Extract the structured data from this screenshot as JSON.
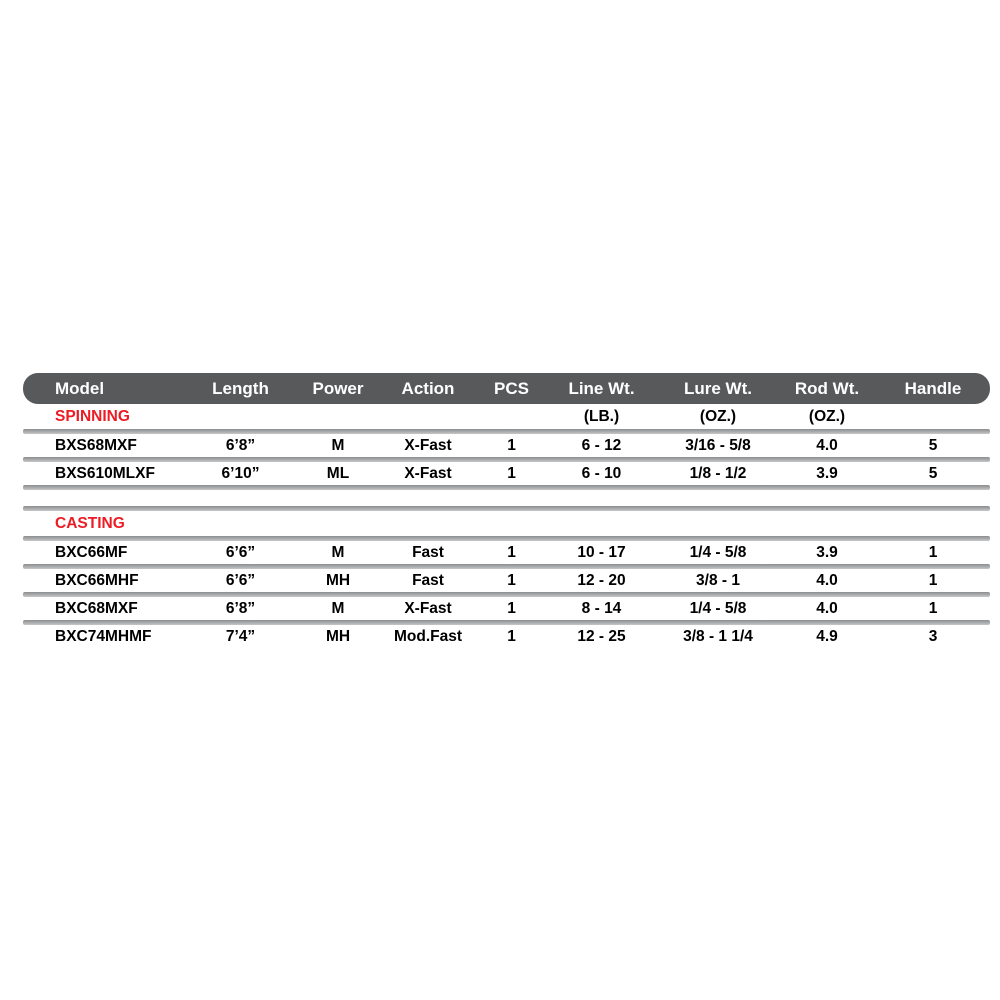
{
  "page": {
    "background": "#FFFFFF"
  },
  "table": {
    "colors": {
      "header_bg": "#58595B",
      "header_text": "#FFFFFF",
      "section_title": "#EC1C24",
      "row_text": "#000000",
      "divider_top": "#8B8C8E",
      "divider_bottom": "#C6C7C9"
    },
    "columns": [
      {
        "key": "model",
        "label": "Model",
        "unit": ""
      },
      {
        "key": "length",
        "label": "Length",
        "unit": ""
      },
      {
        "key": "power",
        "label": "Power",
        "unit": ""
      },
      {
        "key": "action",
        "label": "Action",
        "unit": ""
      },
      {
        "key": "pcs",
        "label": "PCS",
        "unit": ""
      },
      {
        "key": "line_wt",
        "label": "Line Wt.",
        "unit": "(LB.)"
      },
      {
        "key": "lure_wt",
        "label": "Lure Wt.",
        "unit": "(OZ.)"
      },
      {
        "key": "rod_wt",
        "label": "Rod Wt.",
        "unit": "(OZ.)"
      },
      {
        "key": "handle",
        "label": "Handle",
        "unit": ""
      }
    ],
    "sections": [
      {
        "title": "SPINNING",
        "show_units": true,
        "rows": [
          [
            "BXS68MXF",
            "6’8”",
            "M",
            "X-Fast",
            "1",
            "6 - 12",
            "3/16 - 5/8",
            "4.0",
            "5"
          ],
          [
            "BXS610MLXF",
            "6’10”",
            "ML",
            "X-Fast",
            "1",
            "6 - 10",
            "1/8 - 1/2",
            "3.9",
            "5"
          ]
        ]
      },
      {
        "title": "CASTING",
        "show_units": false,
        "rows": [
          [
            "BXC66MF",
            "6’6”",
            "M",
            "Fast",
            "1",
            "10 - 17",
            "1/4 - 5/8",
            "3.9",
            "1"
          ],
          [
            "BXC66MHF",
            "6’6”",
            "MH",
            "Fast",
            "1",
            "12 - 20",
            "3/8 - 1",
            "4.0",
            "1"
          ],
          [
            "BXC68MXF",
            "6’8”",
            "M",
            "X-Fast",
            "1",
            "8 - 14",
            "1/4 - 5/8",
            "4.0",
            "1"
          ],
          [
            "BXC74MHMF",
            "7’4”",
            "MH",
            "Mod.Fast",
            "1",
            "12 - 25",
            "3/8 - 1 1/4",
            "4.9",
            "3"
          ]
        ]
      }
    ]
  }
}
